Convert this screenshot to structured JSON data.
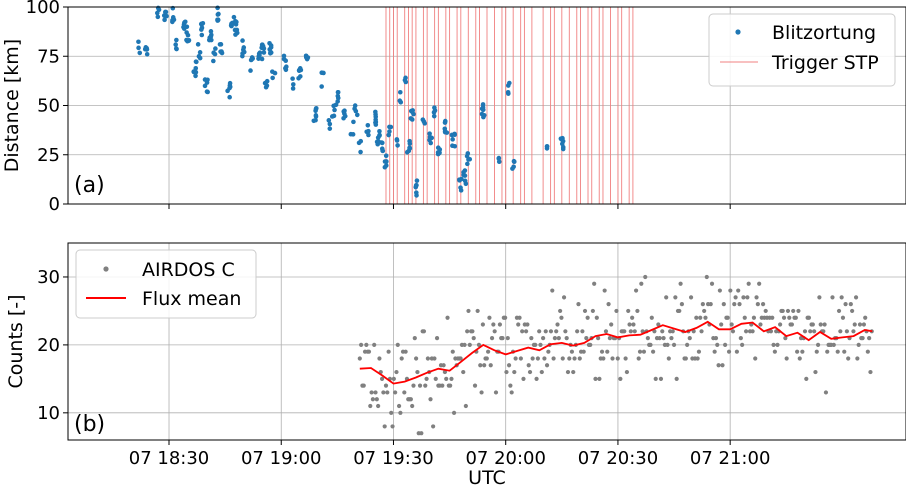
{
  "chart_data": [
    {
      "type": "scatter",
      "panel_label": "(a)",
      "ylabel": "Distance [km]",
      "xlabel": "",
      "ylim": [
        0,
        100
      ],
      "yticks": [
        0,
        25,
        50,
        75,
        100
      ],
      "xlim": [
        "18:03",
        "21:47"
      ],
      "xticks": [
        "18:30",
        "19:00",
        "19:30",
        "20:00",
        "20:30",
        "21:00"
      ],
      "grid": true,
      "legend_position": "top-right",
      "colors": {
        "points": "#1f77b4",
        "trigger": "#f08080"
      },
      "legend": {
        "points": "Blitzortung",
        "trigger": "Trigger STP"
      },
      "trigger_times": [
        "19:28",
        "19:29",
        "19:30",
        "19:31",
        "19:33",
        "19:34",
        "19:35",
        "19:36",
        "19:38",
        "19:39",
        "19:41",
        "19:42",
        "19:44",
        "19:45",
        "19:47",
        "19:48",
        "19:50",
        "19:52",
        "19:53",
        "19:55",
        "19:57",
        "19:59",
        "20:00",
        "20:02",
        "20:04",
        "20:05",
        "20:07",
        "20:10",
        "20:12",
        "20:13",
        "20:15",
        "20:17",
        "20:19",
        "20:20",
        "20:22",
        "20:23",
        "20:25",
        "20:26",
        "20:28",
        "20:30",
        "20:31",
        "20:33",
        "20:34"
      ],
      "clusters": [
        {
          "t": "18:22",
          "d": 79
        },
        {
          "t": "18:24",
          "d": 77
        },
        {
          "t": "18:27",
          "d": 98
        },
        {
          "t": "18:29",
          "d": 97
        },
        {
          "t": "18:31",
          "d": 96
        },
        {
          "t": "18:32",
          "d": 80
        },
        {
          "t": "18:34",
          "d": 91
        },
        {
          "t": "18:35",
          "d": 86
        },
        {
          "t": "18:37",
          "d": 69
        },
        {
          "t": "18:38",
          "d": 78
        },
        {
          "t": "18:39",
          "d": 88
        },
        {
          "t": "18:40",
          "d": 60
        },
        {
          "t": "18:41",
          "d": 84
        },
        {
          "t": "18:42",
          "d": 75
        },
        {
          "t": "18:43",
          "d": 96
        },
        {
          "t": "18:44",
          "d": 79
        },
        {
          "t": "18:46",
          "d": 58
        },
        {
          "t": "18:47",
          "d": 94
        },
        {
          "t": "18:48",
          "d": 89
        },
        {
          "t": "18:50",
          "d": 79
        },
        {
          "t": "18:52",
          "d": 71
        },
        {
          "t": "18:54",
          "d": 75
        },
        {
          "t": "18:55",
          "d": 77
        },
        {
          "t": "18:56",
          "d": 59
        },
        {
          "t": "18:57",
          "d": 79
        },
        {
          "t": "18:58",
          "d": 68
        },
        {
          "t": "19:01",
          "d": 72
        },
        {
          "t": "19:03",
          "d": 60
        },
        {
          "t": "19:05",
          "d": 67
        },
        {
          "t": "19:07",
          "d": 72
        },
        {
          "t": "19:09",
          "d": 45
        },
        {
          "t": "19:11",
          "d": 63
        },
        {
          "t": "19:13",
          "d": 42
        },
        {
          "t": "19:14",
          "d": 48
        },
        {
          "t": "19:15",
          "d": 53
        },
        {
          "t": "19:17",
          "d": 47
        },
        {
          "t": "19:19",
          "d": 39
        },
        {
          "t": "19:20",
          "d": 46
        },
        {
          "t": "19:21",
          "d": 29
        },
        {
          "t": "19:23",
          "d": 37
        },
        {
          "t": "19:25",
          "d": 43
        },
        {
          "t": "19:26",
          "d": 34
        },
        {
          "t": "19:27",
          "d": 29
        },
        {
          "t": "19:28",
          "d": 21
        },
        {
          "t": "19:29",
          "d": 38
        },
        {
          "t": "19:31",
          "d": 33
        },
        {
          "t": "19:32",
          "d": 54
        },
        {
          "t": "19:33",
          "d": 62
        },
        {
          "t": "19:34",
          "d": 30
        },
        {
          "t": "19:35",
          "d": 45
        },
        {
          "t": "19:36",
          "d": 8
        },
        {
          "t": "19:38",
          "d": 39
        },
        {
          "t": "19:40",
          "d": 33
        },
        {
          "t": "19:41",
          "d": 48
        },
        {
          "t": "19:42",
          "d": 25
        },
        {
          "t": "19:44",
          "d": 40
        },
        {
          "t": "19:46",
          "d": 33
        },
        {
          "t": "19:48",
          "d": 10
        },
        {
          "t": "19:49",
          "d": 13
        },
        {
          "t": "19:50",
          "d": 23
        },
        {
          "t": "19:54",
          "d": 48
        },
        {
          "t": "19:58",
          "d": 20
        },
        {
          "t": "20:01",
          "d": 60
        },
        {
          "t": "20:02",
          "d": 20
        },
        {
          "t": "20:11",
          "d": 30
        },
        {
          "t": "20:15",
          "d": 30
        }
      ]
    },
    {
      "type": "line",
      "panel_label": "(b)",
      "ylabel": "Counts [-]",
      "xlabel": "UTC",
      "ylim": [
        6,
        35
      ],
      "yticks": [
        10,
        20,
        30
      ],
      "xlim": [
        "18:03",
        "21:47"
      ],
      "xticks": [
        "18:30",
        "19:00",
        "19:30",
        "20:00",
        "20:30",
        "21:00"
      ],
      "xtick_labels": [
        "07 18:30",
        "07 19:00",
        "07 19:30",
        "07 20:00",
        "07 20:30",
        "07 21:00"
      ],
      "grid": true,
      "legend_position": "top-left",
      "colors": {
        "scatter": "#808080",
        "mean": "#ff0000"
      },
      "series": [
        {
          "name": "AIRDOS C",
          "kind": "scatter",
          "time_range": [
            "19:21",
            "21:38"
          ],
          "mean_trend": "follows Flux mean with ±5 scatter"
        },
        {
          "name": "Flux mean",
          "kind": "line",
          "points": [
            {
              "t": "19:21",
              "v": 16.5
            },
            {
              "t": "19:24",
              "v": 16.6
            },
            {
              "t": "19:27",
              "v": 15.5
            },
            {
              "t": "19:30",
              "v": 14.3
            },
            {
              "t": "19:33",
              "v": 14.6
            },
            {
              "t": "19:36",
              "v": 15.2
            },
            {
              "t": "19:39",
              "v": 15.9
            },
            {
              "t": "19:42",
              "v": 16.5
            },
            {
              "t": "19:45",
              "v": 16.2
            },
            {
              "t": "19:48",
              "v": 17.5
            },
            {
              "t": "19:51",
              "v": 18.8
            },
            {
              "t": "19:54",
              "v": 20.0
            },
            {
              "t": "19:57",
              "v": 19.2
            },
            {
              "t": "20:00",
              "v": 18.6
            },
            {
              "t": "20:03",
              "v": 19.1
            },
            {
              "t": "20:06",
              "v": 19.6
            },
            {
              "t": "20:09",
              "v": 19.2
            },
            {
              "t": "20:12",
              "v": 20.1
            },
            {
              "t": "20:15",
              "v": 20.3
            },
            {
              "t": "20:18",
              "v": 19.9
            },
            {
              "t": "20:21",
              "v": 20.3
            },
            {
              "t": "20:24",
              "v": 21.3
            },
            {
              "t": "20:27",
              "v": 21.6
            },
            {
              "t": "20:30",
              "v": 21.1
            },
            {
              "t": "20:33",
              "v": 21.4
            },
            {
              "t": "20:36",
              "v": 21.5
            },
            {
              "t": "20:39",
              "v": 22.2
            },
            {
              "t": "20:42",
              "v": 22.9
            },
            {
              "t": "20:45",
              "v": 22.4
            },
            {
              "t": "20:48",
              "v": 21.9
            },
            {
              "t": "20:51",
              "v": 22.5
            },
            {
              "t": "20:54",
              "v": 23.4
            },
            {
              "t": "20:57",
              "v": 22.3
            },
            {
              "t": "21:00",
              "v": 22.3
            },
            {
              "t": "21:03",
              "v": 23.1
            },
            {
              "t": "21:06",
              "v": 23.3
            },
            {
              "t": "21:09",
              "v": 22.0
            },
            {
              "t": "21:12",
              "v": 22.6
            },
            {
              "t": "21:15",
              "v": 21.3
            },
            {
              "t": "21:18",
              "v": 21.8
            },
            {
              "t": "21:21",
              "v": 20.7
            },
            {
              "t": "21:24",
              "v": 21.9
            },
            {
              "t": "21:27",
              "v": 20.9
            },
            {
              "t": "21:30",
              "v": 21.1
            },
            {
              "t": "21:33",
              "v": 21.3
            },
            {
              "t": "21:36",
              "v": 22.2
            },
            {
              "t": "21:38",
              "v": 22.0
            }
          ]
        }
      ]
    }
  ]
}
